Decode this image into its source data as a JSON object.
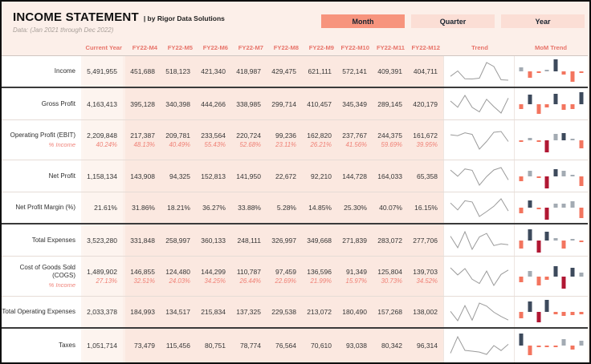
{
  "window": {
    "title": "INCOME STATEMENT",
    "title_suffix": "| by Rigor Data Solutions",
    "subtitle": "Data: (Jan 2021 through Dec 2022)"
  },
  "view_buttons": [
    {
      "label": "Month",
      "selected": true
    },
    {
      "label": "Quarter",
      "selected": false
    },
    {
      "label": "Year",
      "selected": false
    }
  ],
  "columns": [
    "Current Year",
    "FY22-M4",
    "FY22-M5",
    "FY22-M6",
    "FY22-M7",
    "FY22-M8",
    "FY22-M9",
    "FY22-M10",
    "FY22-M11",
    "FY22-M12"
  ],
  "trend_header": "Trend",
  "mom_header": "MoM Trend",
  "colors": {
    "page_bg": "#fcefe9",
    "month_col_bg": "#fbe8e0",
    "current_col_bg": "#fdf4ef",
    "header_text": "#e8746a",
    "pct_text": "#ef7f74",
    "selected_button_bg": "#f7947d",
    "button_bg": "#fbded5",
    "spark_line": "#9b9b9b",
    "bar_pos_strong": "#3d4a5c",
    "bar_pos_weak": "#a3abb3",
    "bar_neg_strong": "#b01733",
    "bar_neg_weak": "#f3755f",
    "thick_separator": "#3a3a3a"
  },
  "rows": [
    {
      "label": "Income",
      "current": "5,491,955",
      "values": [
        "451,688",
        "518,123",
        "421,340",
        "418,987",
        "429,475",
        "621,111",
        "572,141",
        "409,391",
        "404,711"
      ],
      "sep": "thick"
    },
    {
      "label": "Gross Profit",
      "current": "4,163,413",
      "values": [
        "395,128",
        "340,398",
        "444,266",
        "338,985",
        "299,714",
        "410,457",
        "345,349",
        "289,145",
        "420,179"
      ],
      "sep": "thin"
    },
    {
      "label": "Operating Profit (EBIT)",
      "current": "2,209,848",
      "values": [
        "217,387",
        "209,781",
        "233,564",
        "220,724",
        "99,236",
        "162,820",
        "237,767",
        "244,375",
        "161,672"
      ],
      "sub_label": "% Income",
      "sub_current": "40.24%",
      "sub_values": [
        "48.13%",
        "40.49%",
        "55.43%",
        "52.68%",
        "23.11%",
        "26.21%",
        "41.56%",
        "59.69%",
        "39.95%"
      ],
      "sep": "thin"
    },
    {
      "label": "Net Profit",
      "current": "1,158,134",
      "values": [
        "143,908",
        "94,325",
        "152,813",
        "141,950",
        "22,672",
        "92,210",
        "144,728",
        "164,033",
        "65,358"
      ],
      "sep": "thin"
    },
    {
      "label": "Net Profit Margin (%)",
      "current": "21.61%",
      "values": [
        "31.86%",
        "18.21%",
        "36.27%",
        "33.88%",
        "5.28%",
        "14.85%",
        "25.30%",
        "40.07%",
        "16.15%"
      ],
      "sep": "thick"
    },
    {
      "label": "Total Expenses",
      "current": "3,523,280",
      "values": [
        "331,848",
        "258,997",
        "360,133",
        "248,111",
        "326,997",
        "349,668",
        "271,839",
        "283,072",
        "277,706"
      ],
      "sep": "thin"
    },
    {
      "label": "Cost of Goods Sold (COGS)",
      "current": "1,489,902",
      "values": [
        "146,855",
        "124,480",
        "144,299",
        "110,787",
        "97,459",
        "136,596",
        "91,349",
        "125,804",
        "139,703"
      ],
      "sub_label": "% Income",
      "sub_current": "27.13%",
      "sub_values": [
        "32.51%",
        "24.03%",
        "34.25%",
        "26.44%",
        "22.69%",
        "21.99%",
        "15.97%",
        "30.73%",
        "34.52%"
      ],
      "sep": "thin"
    },
    {
      "label": "Total Operating Expenses",
      "current": "2,033,378",
      "values": [
        "184,993",
        "134,517",
        "215,834",
        "137,325",
        "229,538",
        "213,072",
        "180,490",
        "157,268",
        "138,002"
      ],
      "sep": "thick"
    },
    {
      "label": "Taxes",
      "current": "1,051,714",
      "values": [
        "73,479",
        "115,456",
        "80,751",
        "78,774",
        "76,564",
        "70,610",
        "93,038",
        "80,342",
        "96,314"
      ],
      "sep": "none"
    }
  ]
}
